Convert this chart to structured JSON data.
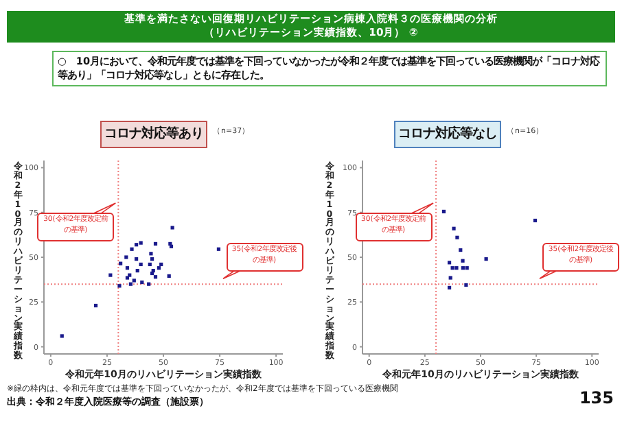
{
  "chart_data": [
    {
      "type": "other",
      "title": "基準を満たさない回復期リハビリテーション病棟入院料３の医療機関の分析",
      "subtitle": "（リハビリテーション実績指数、10月） ②",
      "annotations": [
        "○　10月において、令和元年度では基準を下回っていなかったが令和２年度では基準を下回っている医療機関が「コロナ対応等あり」「コロナ対応等なし」ともに存在した。",
        "※緑の枠内は、令和元年度では基準を下回っていなかったが、令和2年度では基準を下回っている医療機関",
        "出典：令和２年度入院医療等の調査（施設票）",
        "135"
      ]
    },
    {
      "type": "scatter",
      "title": "コロナ対応等あり",
      "subtitle": "（n=37）",
      "xlabel": "令和元年10月のリハビリテーション実績指数",
      "ylabel": "令和2年10月のリハビリテーション実績指数",
      "marker": "square",
      "series": [
        {
          "color": "#1a1a8c",
          "x": [
            5,
            20,
            26.5,
            31,
            30.5,
            33.5,
            34,
            34,
            35,
            35.5,
            36,
            38,
            38,
            38.5,
            40,
            40,
            40.5,
            43.5,
            44,
            44.5,
            45,
            45,
            45.5,
            46.5,
            46.5,
            48,
            49,
            52.5,
            53,
            53.5,
            54,
            74.5,
            37
          ],
          "values": [
            6,
            23,
            40,
            46.5,
            34,
            50,
            44,
            38.5,
            40,
            35,
            54.5,
            57,
            49,
            42.5,
            46,
            58,
            36,
            35,
            46,
            52,
            49,
            41,
            42.5,
            57.5,
            39,
            44,
            46,
            39.5,
            57.5,
            56,
            66.5,
            54.5,
            37
          ]
        }
      ],
      "xlim": [
        -3,
        103
      ],
      "ylim": [
        -4,
        104
      ],
      "xticks": [
        0,
        25,
        50,
        75,
        100
      ],
      "yticks": [
        0,
        25,
        50,
        75,
        100
      ],
      "ref_lines": [
        {
          "axis": "x",
          "value": 30,
          "label": "30(令和2年度改定前の基準)",
          "color": "#f08080",
          "line_style": "dotted"
        },
        {
          "axis": "y",
          "value": 35,
          "label": "35(令和2年度改定後の基準)",
          "color": "#f08080",
          "line_style": "dotted"
        }
      ]
    },
    {
      "type": "scatter",
      "title": "コロナ対応等なし",
      "subtitle": "（n=16）",
      "xlabel": "令和元年10月のリハビリテーション実績指数",
      "ylabel": "令和2年10月のリハビリテーション実績指数",
      "marker": "square",
      "series": [
        {
          "color": "#1a1a8c",
          "x": [
            33.5,
            38,
            39.5,
            41,
            36,
            37.4,
            39.2,
            42,
            42.1,
            43.9,
            36.5,
            36,
            43.5,
            52.5,
            74.5
          ],
          "values": [
            75.5,
            66,
            61,
            54,
            47,
            44,
            44,
            48,
            44,
            44,
            38.5,
            33,
            34.5,
            49,
            70.5
          ]
        }
      ],
      "xlim": [
        -3,
        103
      ],
      "ylim": [
        -4,
        104
      ],
      "xticks": [
        0,
        25,
        50,
        75,
        100
      ],
      "yticks": [
        0,
        25,
        50,
        75,
        100
      ],
      "ref_lines": [
        {
          "axis": "x",
          "value": 30,
          "label": "30(令和2年度改定前の基準)",
          "color": "#f08080",
          "line_style": "dotted"
        },
        {
          "axis": "y",
          "value": 35,
          "label": "35(令和2年度改定後の基準)",
          "color": "#f08080",
          "line_style": "dotted"
        }
      ]
    }
  ]
}
